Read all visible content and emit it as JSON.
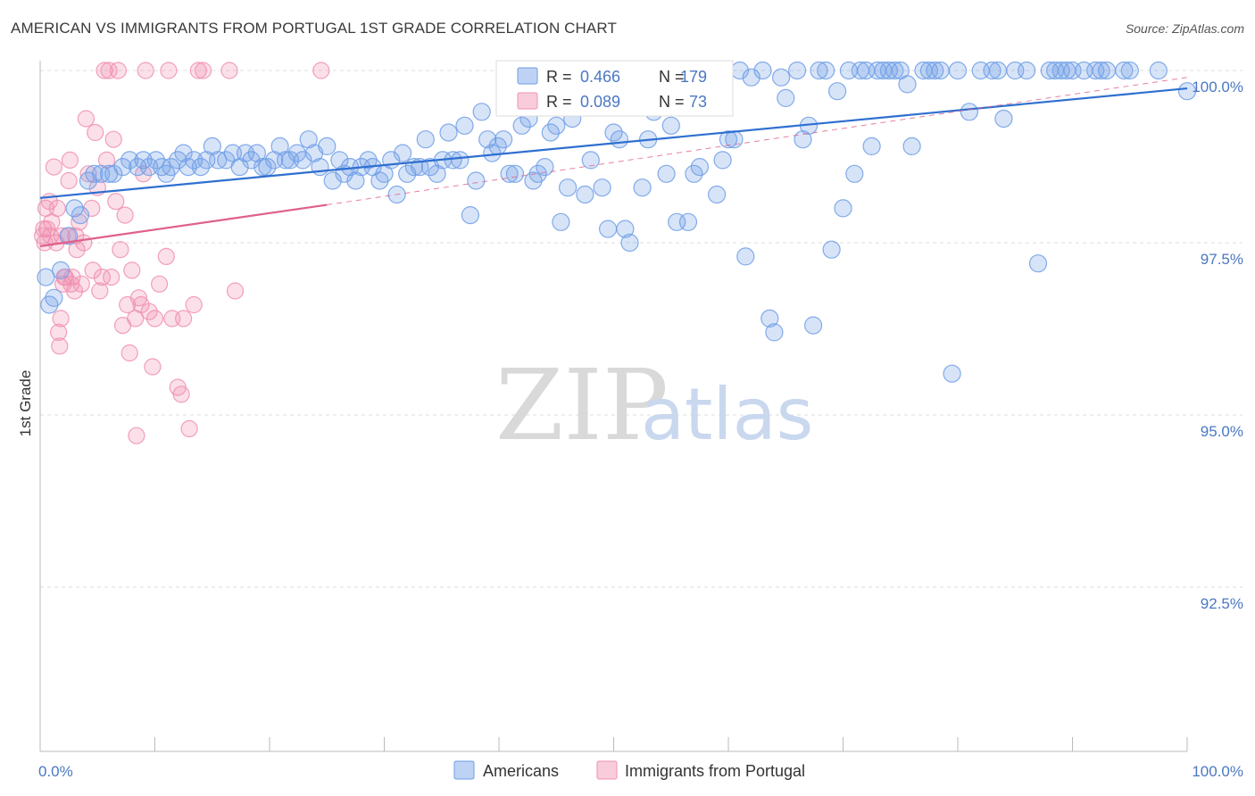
{
  "title": "AMERICAN VS IMMIGRANTS FROM PORTUGAL 1ST GRADE CORRELATION CHART",
  "source": "Source: ZipAtlas.com",
  "watermark": {
    "zip": "ZIP",
    "atlas": "atlas"
  },
  "colors": {
    "americans": "#6f9ee6",
    "portugal": "#f08fb0",
    "americans_line": "#2f6fd0",
    "portugal_line": "#e0608a",
    "tick_text": "#4a78c2"
  },
  "legend_stats": [
    {
      "r_label": "R = ",
      "r_value": "0.466",
      "n_label": "N = ",
      "n_value": "179"
    },
    {
      "r_label": "R = ",
      "r_value": "0.089",
      "n_label": "N = ",
      "n_value": "73"
    }
  ],
  "chart_data": {
    "type": "scatter",
    "title": "AMERICAN VS IMMIGRANTS FROM PORTUGAL 1ST GRADE CORRELATION CHART",
    "xlabel": "",
    "ylabel": "1st Grade",
    "xlim": [
      0,
      100
    ],
    "ylim": [
      90.6,
      100.4
    ],
    "x_tick_labels": [
      "0.0%",
      "100.0%"
    ],
    "y_ticks": [
      92.5,
      95.0,
      97.5,
      100.0
    ],
    "y_tick_labels": [
      "92.5%",
      "95.0%",
      "97.5%",
      "100.0%"
    ],
    "grid": "horizontal dashed",
    "legend_position": "bottom",
    "series": [
      {
        "name": "Americans",
        "r": 0.466,
        "n": 179,
        "trend": {
          "x": [
            0,
            100
          ],
          "y": [
            98.15,
            99.74
          ]
        },
        "points": [
          [
            0.5,
            97.0
          ],
          [
            0.8,
            96.6
          ],
          [
            1.2,
            96.7
          ],
          [
            1.8,
            97.1
          ],
          [
            2.5,
            97.6
          ],
          [
            3.5,
            97.9
          ],
          [
            3.0,
            98.0
          ],
          [
            4.2,
            98.4
          ],
          [
            4.7,
            98.5
          ],
          [
            5.3,
            98.5
          ],
          [
            6.0,
            98.5
          ],
          [
            6.4,
            98.5
          ],
          [
            7.2,
            98.6
          ],
          [
            7.8,
            98.7
          ],
          [
            8.5,
            98.6
          ],
          [
            9.0,
            98.7
          ],
          [
            9.5,
            98.6
          ],
          [
            10.1,
            98.7
          ],
          [
            10.6,
            98.6
          ],
          [
            11.0,
            98.5
          ],
          [
            11.4,
            98.6
          ],
          [
            12.0,
            98.7
          ],
          [
            12.5,
            98.8
          ],
          [
            12.9,
            98.6
          ],
          [
            13.4,
            98.7
          ],
          [
            14.0,
            98.6
          ],
          [
            14.5,
            98.7
          ],
          [
            15.0,
            98.9
          ],
          [
            15.5,
            98.7
          ],
          [
            16.2,
            98.7
          ],
          [
            16.8,
            98.8
          ],
          [
            17.4,
            98.6
          ],
          [
            17.9,
            98.8
          ],
          [
            18.4,
            98.7
          ],
          [
            18.9,
            98.8
          ],
          [
            19.4,
            98.6
          ],
          [
            19.8,
            98.6
          ],
          [
            20.4,
            98.7
          ],
          [
            20.9,
            98.9
          ],
          [
            21.4,
            98.7
          ],
          [
            21.8,
            98.7
          ],
          [
            22.4,
            98.8
          ],
          [
            22.9,
            98.7
          ],
          [
            23.4,
            99.0
          ],
          [
            23.9,
            98.8
          ],
          [
            24.4,
            98.6
          ],
          [
            25.0,
            98.9
          ],
          [
            25.5,
            98.4
          ],
          [
            26.1,
            98.7
          ],
          [
            26.5,
            98.5
          ],
          [
            27.0,
            98.6
          ],
          [
            27.5,
            98.4
          ],
          [
            28.0,
            98.6
          ],
          [
            28.6,
            98.7
          ],
          [
            29.0,
            98.6
          ],
          [
            29.6,
            98.4
          ],
          [
            30.0,
            98.5
          ],
          [
            30.6,
            98.7
          ],
          [
            31.1,
            98.2
          ],
          [
            31.6,
            98.8
          ],
          [
            32.0,
            98.5
          ],
          [
            32.6,
            98.6
          ],
          [
            33.1,
            98.6
          ],
          [
            33.6,
            99.0
          ],
          [
            34.0,
            98.6
          ],
          [
            34.6,
            98.5
          ],
          [
            35.1,
            98.7
          ],
          [
            35.6,
            99.1
          ],
          [
            36.0,
            98.7
          ],
          [
            36.6,
            98.7
          ],
          [
            37.0,
            99.2
          ],
          [
            37.5,
            97.9
          ],
          [
            38.0,
            98.4
          ],
          [
            38.5,
            99.4
          ],
          [
            39.0,
            99.0
          ],
          [
            39.4,
            98.8
          ],
          [
            39.9,
            98.9
          ],
          [
            40.4,
            99.0
          ],
          [
            40.9,
            98.5
          ],
          [
            41.4,
            98.5
          ],
          [
            42.0,
            99.2
          ],
          [
            42.6,
            99.3
          ],
          [
            43.0,
            98.4
          ],
          [
            43.4,
            98.5
          ],
          [
            44.0,
            98.6
          ],
          [
            44.5,
            99.1
          ],
          [
            45.0,
            99.2
          ],
          [
            45.4,
            97.8
          ],
          [
            46.0,
            98.3
          ],
          [
            46.4,
            99.3
          ],
          [
            47.0,
            99.6
          ],
          [
            47.5,
            98.2
          ],
          [
            48.0,
            98.7
          ],
          [
            48.5,
            99.6
          ],
          [
            49.0,
            98.3
          ],
          [
            49.5,
            97.7
          ],
          [
            50.0,
            99.1
          ],
          [
            50.5,
            99.0
          ],
          [
            51.0,
            97.7
          ],
          [
            51.4,
            97.5
          ],
          [
            52.0,
            99.6
          ],
          [
            52.5,
            98.3
          ],
          [
            53.0,
            99.0
          ],
          [
            53.5,
            99.4
          ],
          [
            54.0,
            99.7
          ],
          [
            54.6,
            98.5
          ],
          [
            55.0,
            99.2
          ],
          [
            55.5,
            97.8
          ],
          [
            56.0,
            99.8
          ],
          [
            56.5,
            97.8
          ],
          [
            57.0,
            98.5
          ],
          [
            57.5,
            98.6
          ],
          [
            58.0,
            99.5
          ],
          [
            58.5,
            99.9
          ],
          [
            59.0,
            98.2
          ],
          [
            59.5,
            98.7
          ],
          [
            60.0,
            99.0
          ],
          [
            60.5,
            99.0
          ],
          [
            61.0,
            100.0
          ],
          [
            61.5,
            97.3
          ],
          [
            62.0,
            99.9
          ],
          [
            63.0,
            100.0
          ],
          [
            63.6,
            96.4
          ],
          [
            64.0,
            96.2
          ],
          [
            64.6,
            99.9
          ],
          [
            65.0,
            99.6
          ],
          [
            66.0,
            100.0
          ],
          [
            66.5,
            99.0
          ],
          [
            67.0,
            99.2
          ],
          [
            67.4,
            96.3
          ],
          [
            67.9,
            100.0
          ],
          [
            68.5,
            100.0
          ],
          [
            69.0,
            97.4
          ],
          [
            69.5,
            99.7
          ],
          [
            70.0,
            98.0
          ],
          [
            70.5,
            100.0
          ],
          [
            71.0,
            98.5
          ],
          [
            71.5,
            100.0
          ],
          [
            72.0,
            100.0
          ],
          [
            72.5,
            98.9
          ],
          [
            73.0,
            100.0
          ],
          [
            73.5,
            100.0
          ],
          [
            74.0,
            100.0
          ],
          [
            74.5,
            100.0
          ],
          [
            75.0,
            100.0
          ],
          [
            75.6,
            99.8
          ],
          [
            76.0,
            98.9
          ],
          [
            77.0,
            100.0
          ],
          [
            77.5,
            100.0
          ],
          [
            78.0,
            100.0
          ],
          [
            78.5,
            100.0
          ],
          [
            79.5,
            95.6
          ],
          [
            80.0,
            100.0
          ],
          [
            81.0,
            99.4
          ],
          [
            82.0,
            100.0
          ],
          [
            83.0,
            100.0
          ],
          [
            83.5,
            100.0
          ],
          [
            84.0,
            99.3
          ],
          [
            85.0,
            100.0
          ],
          [
            86.0,
            100.0
          ],
          [
            87.0,
            97.2
          ],
          [
            88.0,
            100.0
          ],
          [
            88.5,
            100.0
          ],
          [
            89.0,
            100.0
          ],
          [
            89.5,
            100.0
          ],
          [
            90.0,
            100.0
          ],
          [
            91.0,
            100.0
          ],
          [
            92.0,
            100.0
          ],
          [
            92.5,
            100.0
          ],
          [
            93.0,
            100.0
          ],
          [
            94.5,
            100.0
          ],
          [
            95.0,
            100.0
          ],
          [
            97.5,
            100.0
          ],
          [
            100.0,
            99.7
          ]
        ]
      },
      {
        "name": "Immigrants from Portugal",
        "r": 0.089,
        "n": 73,
        "trend": {
          "x": [
            0,
            25
          ],
          "y": [
            97.45,
            98.05
          ]
        },
        "trend_extended": {
          "x": [
            25,
            100
          ],
          "y": [
            98.05,
            99.9
          ]
        },
        "points": [
          [
            0.2,
            97.6
          ],
          [
            0.3,
            97.7
          ],
          [
            0.4,
            97.5
          ],
          [
            0.5,
            98.0
          ],
          [
            0.6,
            97.7
          ],
          [
            0.8,
            98.1
          ],
          [
            1.0,
            97.8
          ],
          [
            1.2,
            98.6
          ],
          [
            1.4,
            97.5
          ],
          [
            1.6,
            96.2
          ],
          [
            1.7,
            96.0
          ],
          [
            1.8,
            96.4
          ],
          [
            1.9,
            97.6
          ],
          [
            2.0,
            96.9
          ],
          [
            2.2,
            97.0
          ],
          [
            2.4,
            97.6
          ],
          [
            2.5,
            98.4
          ],
          [
            2.6,
            98.7
          ],
          [
            2.8,
            97.0
          ],
          [
            3.0,
            96.8
          ],
          [
            3.2,
            97.4
          ],
          [
            3.4,
            97.8
          ],
          [
            3.6,
            96.9
          ],
          [
            3.8,
            97.5
          ],
          [
            4.0,
            99.3
          ],
          [
            4.2,
            98.5
          ],
          [
            4.5,
            98.0
          ],
          [
            4.6,
            97.1
          ],
          [
            4.8,
            99.1
          ],
          [
            5.0,
            98.3
          ],
          [
            5.2,
            96.8
          ],
          [
            5.6,
            100.0
          ],
          [
            5.8,
            98.7
          ],
          [
            6.0,
            100.0
          ],
          [
            6.2,
            97.0
          ],
          [
            6.4,
            99.0
          ],
          [
            6.6,
            98.1
          ],
          [
            6.8,
            100.0
          ],
          [
            7.0,
            97.4
          ],
          [
            7.2,
            96.3
          ],
          [
            7.4,
            97.9
          ],
          [
            7.6,
            96.6
          ],
          [
            7.8,
            95.9
          ],
          [
            8.0,
            97.1
          ],
          [
            8.3,
            96.4
          ],
          [
            8.4,
            94.7
          ],
          [
            8.6,
            96.7
          ],
          [
            8.8,
            96.6
          ],
          [
            9.0,
            98.5
          ],
          [
            9.2,
            100.0
          ],
          [
            9.5,
            96.5
          ],
          [
            9.8,
            95.7
          ],
          [
            10.0,
            96.4
          ],
          [
            10.4,
            96.9
          ],
          [
            11.0,
            97.3
          ],
          [
            11.2,
            100.0
          ],
          [
            11.5,
            96.4
          ],
          [
            12.0,
            95.4
          ],
          [
            12.3,
            95.3
          ],
          [
            12.5,
            96.4
          ],
          [
            13.0,
            94.8
          ],
          [
            13.4,
            96.6
          ],
          [
            13.8,
            100.0
          ],
          [
            14.2,
            100.0
          ],
          [
            16.5,
            100.0
          ],
          [
            17.0,
            96.8
          ],
          [
            24.5,
            100.0
          ],
          [
            2.1,
            97.0
          ],
          [
            3.1,
            97.6
          ],
          [
            1.5,
            98.0
          ],
          [
            0.9,
            97.6
          ],
          [
            2.7,
            96.9
          ],
          [
            5.4,
            97.0
          ]
        ]
      }
    ]
  }
}
